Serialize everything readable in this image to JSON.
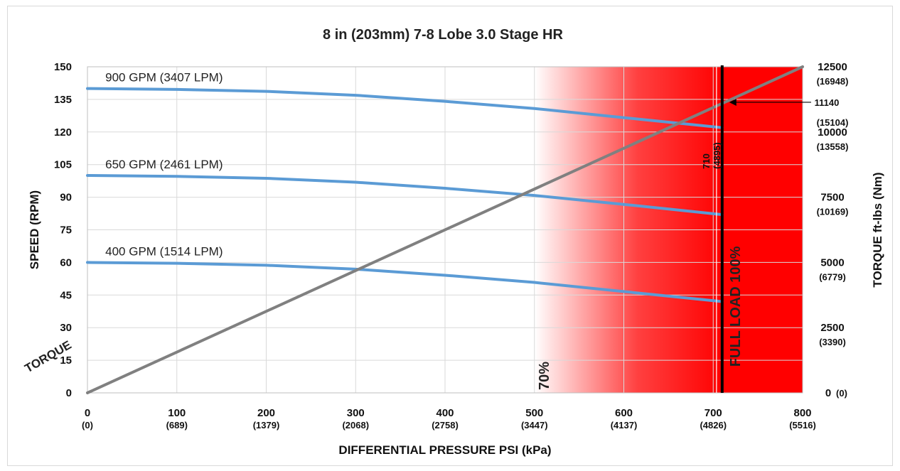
{
  "chart_data": {
    "type": "line",
    "title": "8 in (203mm) 7-8 Lobe 3.0 Stage HR",
    "xlabel": "DIFFERENTIAL PRESSURE PSI (kPa)",
    "ylabel": "SPEED (RPM)",
    "y2label": "TORQUE ft-lbs (Nm)",
    "xlim": [
      0,
      800
    ],
    "ylim": [
      0,
      150
    ],
    "y2lim": [
      0,
      12500
    ],
    "grid": true,
    "x_ticks": [
      {
        "value": 0,
        "label": "0",
        "sub": "(0)"
      },
      {
        "value": 100,
        "label": "100",
        "sub": "(689)"
      },
      {
        "value": 200,
        "label": "200",
        "sub": "(1379)"
      },
      {
        "value": 300,
        "label": "300",
        "sub": "(2068)"
      },
      {
        "value": 400,
        "label": "400",
        "sub": "(2758)"
      },
      {
        "value": 500,
        "label": "500",
        "sub": "(3447)"
      },
      {
        "value": 600,
        "label": "600",
        "sub": "(4137)"
      },
      {
        "value": 700,
        "label": "700",
        "sub": "(4826)"
      },
      {
        "value": 800,
        "label": "800",
        "sub": "(5516)"
      }
    ],
    "y_ticks": [
      "0",
      "15",
      "30",
      "45",
      "60",
      "75",
      "90",
      "105",
      "120",
      "135",
      "150"
    ],
    "y2_ticks": [
      {
        "value": 0,
        "label": "0",
        "sub": "(0)"
      },
      {
        "value": 2500,
        "label": "2500",
        "sub": "(3390)"
      },
      {
        "value": 5000,
        "label": "5000",
        "sub": "(6779)"
      },
      {
        "value": 7500,
        "label": "7500",
        "sub": "(10169)"
      },
      {
        "value": 10000,
        "label": "10000",
        "sub": "(13558)"
      },
      {
        "value": 12500,
        "label": "12500",
        "sub": "(16948)"
      }
    ],
    "series": [
      {
        "name": "900 GPM (3407 LPM)",
        "axis": "speed",
        "color": "#5b9bd5",
        "x": [
          0,
          100,
          200,
          300,
          400,
          500,
          600,
          710
        ],
        "y": [
          140,
          139.6,
          138.7,
          136.9,
          134.1,
          130.8,
          126.6,
          122
        ]
      },
      {
        "name": "650 GPM (2461 LPM)",
        "axis": "speed",
        "color": "#5b9bd5",
        "x": [
          0,
          100,
          200,
          300,
          400,
          500,
          600,
          710
        ],
        "y": [
          100,
          99.6,
          98.7,
          96.9,
          94.1,
          90.8,
          86.7,
          82
        ]
      },
      {
        "name": "400 GPM (1514 LPM)",
        "axis": "speed",
        "color": "#5b9bd5",
        "x": [
          0,
          100,
          200,
          300,
          400,
          500,
          600,
          710
        ],
        "y": [
          60,
          59.6,
          58.7,
          56.9,
          54.1,
          50.8,
          46.6,
          42
        ]
      },
      {
        "name": "TORQUE",
        "axis": "torque",
        "color": "#808080",
        "x": [
          0,
          800
        ],
        "y": [
          0,
          12500
        ]
      }
    ],
    "annotations": {
      "zone_70_label": "70%",
      "zone_70_start_x": 500,
      "full_load_label": "FULL LOAD 100%",
      "full_load_x": 710,
      "full_load_value_label": "710",
      "full_load_value_sub": "(4895)",
      "full_load_torque_label": "11140",
      "full_load_torque_sub": "(15104)",
      "full_load_torque_value": 11140
    },
    "colors": {
      "speed_lines": "#5b9bd5",
      "torque_line": "#808080",
      "zone": "#ff0000",
      "full_load_line": "#000000",
      "grid": "#d9d9d9"
    }
  }
}
